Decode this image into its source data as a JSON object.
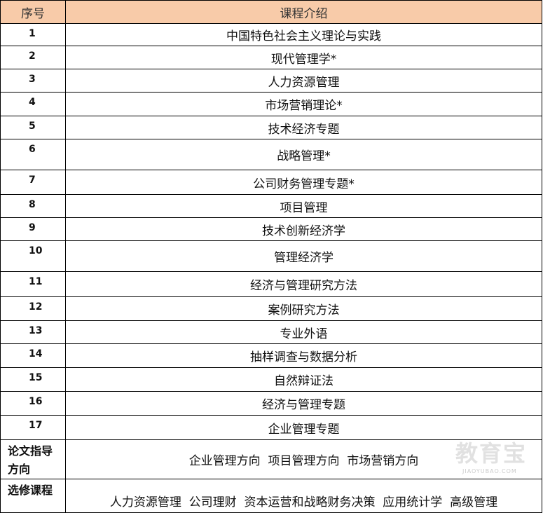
{
  "header": {
    "col_index": "序号",
    "col_course": "课程介绍"
  },
  "rows": [
    {
      "no": "1",
      "name": "中国特色社会主义理论与实践"
    },
    {
      "no": "2",
      "name": "现代管理学*"
    },
    {
      "no": "3",
      "name": "人力资源管理"
    },
    {
      "no": "4",
      "name": "市场营销理论*"
    },
    {
      "no": "5",
      "name": "技术经济专题"
    },
    {
      "no": "6",
      "name": "战略管理*"
    },
    {
      "no": "7",
      "name": "公司财务管理专题*"
    },
    {
      "no": "8",
      "name": "项目管理"
    },
    {
      "no": "9",
      "name": "技术创新经济学"
    },
    {
      "no": "10",
      "name": "管理经济学"
    },
    {
      "no": "11",
      "name": "经济与管理研究方法"
    },
    {
      "no": "12",
      "name": "案例研究方法"
    },
    {
      "no": "13",
      "name": "专业外语"
    },
    {
      "no": "14",
      "name": "抽样调查与数据分析"
    },
    {
      "no": "15",
      "name": "自然辩证法"
    },
    {
      "no": "16",
      "name": "经济与管理专题"
    },
    {
      "no": "17",
      "name": "企业管理专题"
    }
  ],
  "thesis": {
    "label": "论文指导方向",
    "value": "企业管理方向  项目管理方向  市场营销方向"
  },
  "elective": {
    "label": "选修课程",
    "value": "人力资源管理  公司理财  资本运营和战略财务决策  应用统计学  高级管理"
  },
  "watermark": {
    "text": "教育宝",
    "sub": "JIAOYUBAO.COM"
  }
}
